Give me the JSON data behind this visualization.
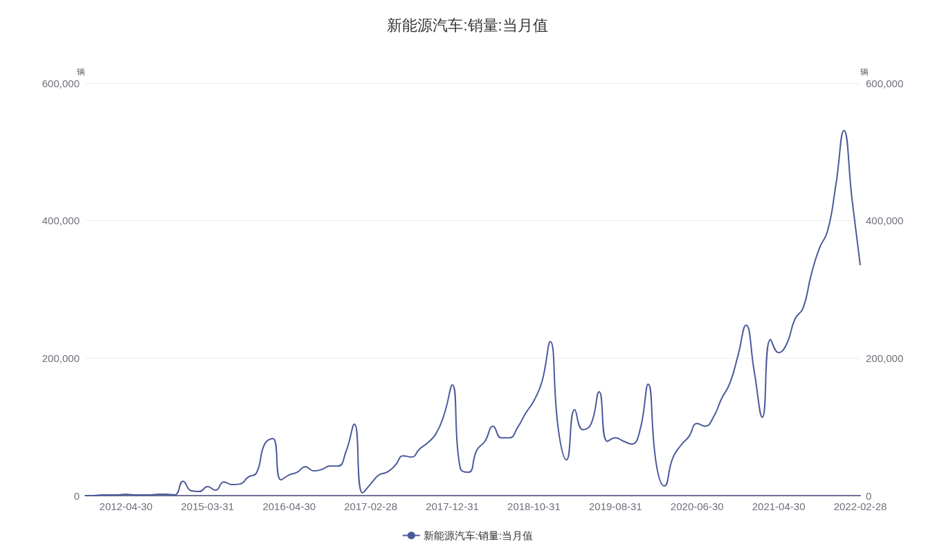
{
  "chart_data": {
    "type": "line",
    "title": "新能源汽车:销量:当月值",
    "ylabel": "辆",
    "y2label": "辆",
    "categories": [
      null,
      null,
      null,
      null,
      null,
      "2012-04-30",
      null,
      null,
      null,
      null,
      null,
      null,
      null,
      null,
      null,
      "2015-03-31",
      null,
      null,
      null,
      null,
      null,
      null,
      null,
      null,
      null,
      "2016-04-30",
      null,
      null,
      null,
      null,
      null,
      null,
      null,
      null,
      null,
      "2017-02-28",
      null,
      null,
      null,
      null,
      null,
      null,
      null,
      null,
      null,
      "2017-12-31",
      null,
      null,
      null,
      null,
      null,
      null,
      null,
      null,
      null,
      "2018-10-31",
      null,
      null,
      null,
      null,
      null,
      null,
      null,
      null,
      null,
      "2019-08-31",
      null,
      null,
      null,
      null,
      null,
      null,
      null,
      null,
      null,
      "2020-06-30",
      null,
      null,
      null,
      null,
      null,
      null,
      null,
      null,
      null,
      "2021-04-30",
      null,
      null,
      null,
      null,
      null,
      null,
      null,
      null,
      null,
      "2022-02-28"
    ],
    "series": [
      {
        "name": "新能源汽车:销量:当月值",
        "color": "#4a5a9a",
        "values": [
          0,
          0,
          1000,
          1000,
          1000,
          2000,
          1000,
          1000,
          1000,
          2000,
          2000,
          1000,
          21000,
          7000,
          6000,
          13000,
          8000,
          20000,
          16000,
          17000,
          27000,
          33000,
          75000,
          83000,
          23000,
          30000,
          34000,
          42000,
          36000,
          38000,
          43000,
          43000,
          65000,
          104000,
          4000,
          17000,
          30000,
          34000,
          44000,
          58000,
          56000,
          68000,
          77000,
          90000,
          118000,
          161000,
          39000,
          34000,
          66000,
          79000,
          101000,
          84000,
          84000,
          99000,
          120000,
          138000,
          166000,
          224000,
          96000,
          52000,
          125000,
          96000,
          104000,
          151000,
          79000,
          84000,
          79000,
          75000,
          95000,
          162000,
          46000,
          14000,
          54000,
          73000,
          86000,
          105000,
          101000,
          114000,
          141000,
          163000,
          203000,
          248000,
          181000,
          114000,
          227000,
          208000,
          221000,
          257000,
          273000,
          322000,
          360000,
          385000,
          451000,
          531000,
          430000,
          335000
        ]
      }
    ],
    "ylim": [
      0,
      600000
    ],
    "yticks": [
      0,
      {
        "value": 200000,
        "label": "200,000"
      },
      {
        "value": 400000,
        "label": "400,000"
      },
      {
        "value": 600000,
        "label": "600,000"
      }
    ],
    "y2lim": [
      0,
      600000
    ],
    "y2ticks": [
      0,
      {
        "value": 200000,
        "label": "200,000"
      },
      {
        "value": 400000,
        "label": "400,000"
      },
      {
        "value": 600000,
        "label": "600,000"
      }
    ],
    "grid": "y",
    "legend": "bottom",
    "marker": "none",
    "line_style": "solid"
  }
}
